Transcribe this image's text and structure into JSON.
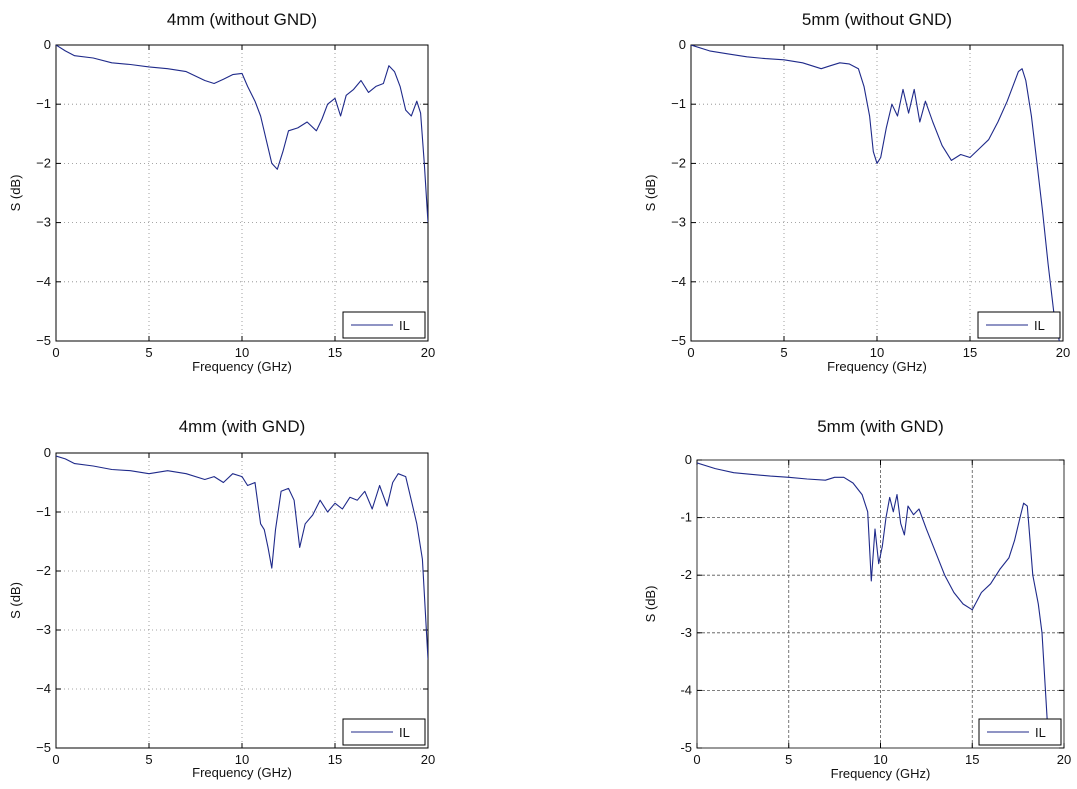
{
  "colors": {
    "series": "#1f2a8a",
    "axis": "#000000",
    "grid": "#777777"
  },
  "chart_data": [
    {
      "type": "line",
      "title": "4mm (without GND)",
      "xlabel": "Frequency (GHz)",
      "ylabel": "S (dB)",
      "xlim": [
        0,
        20
      ],
      "ylim": [
        -5,
        0
      ],
      "xticks": [
        "0",
        "5",
        "10",
        "15",
        "20"
      ],
      "yticks": [
        "0",
        "−1",
        "−2",
        "−3",
        "−4",
        "−5"
      ],
      "grid": true,
      "legend_position": "bottom-right",
      "series": [
        {
          "name": "IL",
          "x": [
            0,
            0.5,
            1,
            2,
            3,
            4,
            5,
            6,
            7,
            8,
            8.5,
            9,
            9.5,
            10,
            10.3,
            10.7,
            11,
            11.3,
            11.6,
            11.9,
            12.2,
            12.5,
            13,
            13.5,
            14,
            14.3,
            14.6,
            15,
            15.3,
            15.6,
            16,
            16.4,
            16.8,
            17.2,
            17.6,
            17.9,
            18.2,
            18.5,
            18.8,
            19.1,
            19.4,
            19.6,
            19.8,
            20
          ],
          "y": [
            0,
            -0.1,
            -0.18,
            -0.22,
            -0.3,
            -0.33,
            -0.37,
            -0.4,
            -0.45,
            -0.6,
            -0.65,
            -0.58,
            -0.5,
            -0.48,
            -0.7,
            -0.95,
            -1.2,
            -1.6,
            -2.0,
            -2.1,
            -1.8,
            -1.45,
            -1.4,
            -1.3,
            -1.45,
            -1.25,
            -1.0,
            -0.9,
            -1.2,
            -0.85,
            -0.75,
            -0.6,
            -0.8,
            -0.7,
            -0.65,
            -0.35,
            -0.45,
            -0.7,
            -1.1,
            -1.2,
            -0.95,
            -1.15,
            -2.0,
            -3.0
          ]
        }
      ]
    },
    {
      "type": "line",
      "title": "5mm (without GND)",
      "xlabel": "Frequency (GHz)",
      "ylabel": "S (dB)",
      "xlim": [
        0,
        20
      ],
      "ylim": [
        -5,
        0
      ],
      "xticks": [
        "0",
        "5",
        "10",
        "15",
        "20"
      ],
      "yticks": [
        "0",
        "−1",
        "−2",
        "−3",
        "−4",
        "−5"
      ],
      "grid": true,
      "legend_position": "bottom-right",
      "series": [
        {
          "name": "IL",
          "x": [
            0,
            1,
            2,
            3,
            4,
            5,
            6,
            7,
            7.5,
            8,
            8.5,
            9,
            9.3,
            9.6,
            9.8,
            10,
            10.2,
            10.5,
            10.8,
            11.1,
            11.4,
            11.7,
            12,
            12.3,
            12.6,
            13,
            13.5,
            14,
            14.5,
            15,
            15.5,
            16,
            16.5,
            17,
            17.3,
            17.6,
            17.8,
            18,
            18.3,
            18.6,
            18.9,
            19.2,
            19.5,
            19.8
          ],
          "y": [
            0,
            -0.1,
            -0.15,
            -0.2,
            -0.23,
            -0.25,
            -0.3,
            -0.4,
            -0.35,
            -0.3,
            -0.32,
            -0.4,
            -0.7,
            -1.2,
            -1.8,
            -2.0,
            -1.9,
            -1.4,
            -1.0,
            -1.2,
            -0.75,
            -1.15,
            -0.75,
            -1.3,
            -0.95,
            -1.3,
            -1.7,
            -1.95,
            -1.85,
            -1.9,
            -1.75,
            -1.6,
            -1.3,
            -0.95,
            -0.7,
            -0.45,
            -0.4,
            -0.6,
            -1.2,
            -2.0,
            -2.8,
            -3.7,
            -4.5,
            -5.0
          ]
        }
      ]
    },
    {
      "type": "line",
      "title": "4mm (with GND)",
      "xlabel": "Frequency (GHz)",
      "ylabel": "S (dB)",
      "xlim": [
        0,
        20
      ],
      "ylim": [
        -5,
        0
      ],
      "xticks": [
        "0",
        "5",
        "10",
        "15",
        "20"
      ],
      "yticks": [
        "0",
        "−1",
        "−2",
        "−3",
        "−4",
        "−5"
      ],
      "grid": true,
      "legend_position": "bottom-right",
      "series": [
        {
          "name": "IL",
          "x": [
            0,
            0.5,
            1,
            2,
            3,
            4,
            5,
            6,
            7,
            8,
            8.5,
            9,
            9.5,
            10,
            10.3,
            10.7,
            11,
            11.2,
            11.4,
            11.6,
            11.8,
            12.1,
            12.5,
            12.8,
            13.1,
            13.4,
            13.8,
            14.2,
            14.6,
            15,
            15.4,
            15.8,
            16.2,
            16.6,
            17,
            17.4,
            17.8,
            18.1,
            18.4,
            18.8,
            19.1,
            19.4,
            19.7,
            20
          ],
          "y": [
            -0.05,
            -0.1,
            -0.18,
            -0.22,
            -0.28,
            -0.3,
            -0.35,
            -0.3,
            -0.35,
            -0.45,
            -0.4,
            -0.5,
            -0.35,
            -0.4,
            -0.55,
            -0.5,
            -1.2,
            -1.3,
            -1.6,
            -1.95,
            -1.3,
            -0.65,
            -0.6,
            -0.8,
            -1.6,
            -1.2,
            -1.05,
            -0.8,
            -1.0,
            -0.85,
            -0.95,
            -0.75,
            -0.8,
            -0.65,
            -0.95,
            -0.55,
            -0.9,
            -0.5,
            -0.35,
            -0.4,
            -0.8,
            -1.2,
            -1.8,
            -3.5
          ]
        }
      ]
    },
    {
      "type": "line",
      "title": "5mm (with GND)",
      "xlabel": "Frequency (GHz)",
      "ylabel": "S (dB)",
      "xlim": [
        0,
        20
      ],
      "ylim": [
        -5,
        0
      ],
      "xticks": [
        "0",
        "5",
        "10",
        "15",
        "20"
      ],
      "yticks": [
        "0",
        "-1",
        "-2",
        "-3",
        "-4",
        "-5"
      ],
      "grid": true,
      "legend_position": "bottom-right",
      "series": [
        {
          "name": "IL",
          "x": [
            0,
            1,
            2,
            3,
            4,
            5,
            6,
            7,
            7.5,
            8,
            8.5,
            9,
            9.3,
            9.5,
            9.7,
            9.9,
            10.1,
            10.3,
            10.5,
            10.7,
            10.9,
            11.1,
            11.3,
            11.5,
            11.8,
            12.1,
            12.5,
            13,
            13.5,
            14,
            14.5,
            15,
            15.5,
            16,
            16.5,
            17,
            17.3,
            17.6,
            17.8,
            18,
            18.3,
            18.6,
            18.8,
            19.1
          ],
          "y": [
            -0.05,
            -0.15,
            -0.22,
            -0.25,
            -0.28,
            -0.3,
            -0.33,
            -0.35,
            -0.3,
            -0.3,
            -0.4,
            -0.6,
            -0.9,
            -2.1,
            -1.2,
            -1.8,
            -1.5,
            -1.0,
            -0.65,
            -0.9,
            -0.6,
            -1.1,
            -1.3,
            -0.8,
            -0.95,
            -0.85,
            -1.2,
            -1.6,
            -2.0,
            -2.3,
            -2.5,
            -2.6,
            -2.3,
            -2.15,
            -1.9,
            -1.7,
            -1.4,
            -1.0,
            -0.75,
            -0.8,
            -2.0,
            -2.5,
            -3.0,
            -4.6
          ]
        }
      ]
    }
  ]
}
